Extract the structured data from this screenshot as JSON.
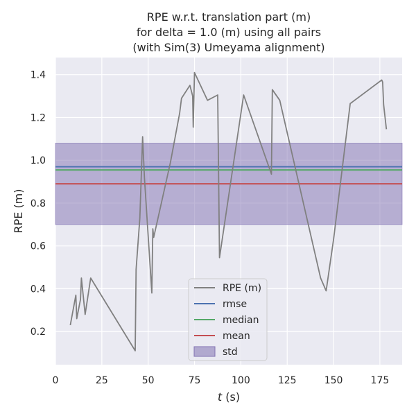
{
  "chart_data": {
    "type": "line",
    "title": [
      "RPE w.r.t. translation part (m)",
      "for delta = 1.0 (m) using all pairs",
      "(with Sim(3) Umeyama alignment)"
    ],
    "xlabel_var": "t",
    "xlabel_unit": " (s)",
    "ylabel": "RPE (m)",
    "xlim": [
      0,
      187
    ],
    "ylim": [
      0.045,
      1.48
    ],
    "xticks": [
      0,
      25,
      50,
      75,
      100,
      125,
      150,
      175
    ],
    "yticks": [
      0.2,
      0.4,
      0.6,
      0.8,
      1.0,
      1.2,
      1.4
    ],
    "ytick_labels": [
      "0.2",
      "0.4",
      "0.6",
      "0.8",
      "1.0",
      "1.2",
      "1.4"
    ],
    "grid": true,
    "legend_position": "lower-center",
    "series": [
      {
        "name": "RPE (m)",
        "color": "#808080",
        "x": [
          8,
          11,
          11.5,
          13.5,
          14,
          16,
          19,
          43,
          43.5,
          45.5,
          47,
          48,
          52,
          52.5,
          53,
          62,
          67,
          68,
          72.5,
          74,
          74.3,
          75,
          82,
          87.5,
          88.5,
          101.5,
          116.5,
          117,
          121,
          143,
          146,
          150,
          159,
          176,
          176.5,
          177,
          178.5
        ],
        "y": [
          0.23,
          0.37,
          0.26,
          0.35,
          0.45,
          0.28,
          0.45,
          0.11,
          0.49,
          0.73,
          1.11,
          0.92,
          0.38,
          0.68,
          0.64,
          0.99,
          1.22,
          1.29,
          1.35,
          1.3,
          1.155,
          1.41,
          1.28,
          1.305,
          0.545,
          1.305,
          0.935,
          1.33,
          1.28,
          0.45,
          0.39,
          0.63,
          1.265,
          1.375,
          1.365,
          1.26,
          1.145
        ]
      },
      {
        "name": "rmse",
        "color": "#4c72b0",
        "value": 0.97
      },
      {
        "name": "median",
        "color": "#55a868",
        "value": 0.955
      },
      {
        "name": "mean",
        "color": "#c44e52",
        "value": 0.89
      },
      {
        "name": "std",
        "color": "#8172b2",
        "band": [
          0.7,
          1.08
        ]
      }
    ]
  }
}
